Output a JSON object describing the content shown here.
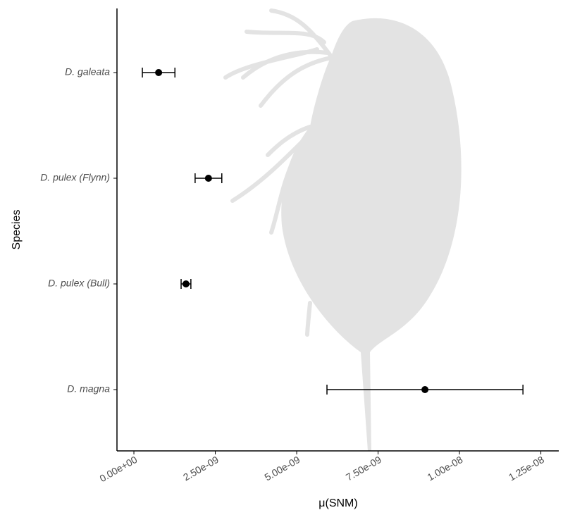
{
  "chart_data": {
    "type": "dot",
    "xlabel": "μ(SNM)",
    "ylabel": "Species",
    "categories": [
      "D. galeata",
      "D. pulex (Flynn)",
      "D. pulex (Bull)",
      "D. magna"
    ],
    "values": [
      7.6e-10,
      2.29e-09,
      1.6e-09,
      8.94e-09
    ],
    "errors": [
      5e-10,
      4.1e-10,
      1.5e-10,
      3.01e-09
    ],
    "color": "#000000",
    "xlim": [
      -5.2e-10,
      1.305e-08
    ],
    "xticks": [
      {
        "value": 0,
        "label": "0.00e+00"
      },
      {
        "value": 2.5e-09,
        "label": "2.50e-09"
      },
      {
        "value": 5e-09,
        "label": "5.00e-09"
      },
      {
        "value": 7.5e-09,
        "label": "7.50e-09"
      },
      {
        "value": 1e-08,
        "label": "1.00e-08"
      },
      {
        "value": 1.25e-08,
        "label": "1.25e-08"
      }
    ],
    "grid": false
  }
}
